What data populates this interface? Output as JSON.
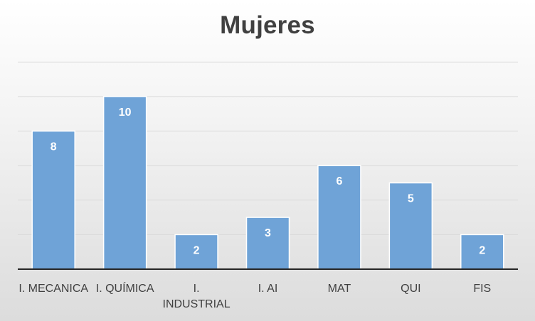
{
  "chart_data": {
    "type": "bar",
    "title": "Mujeres",
    "categories": [
      "I. MECANICA",
      "I. QUÍMICA",
      "I. INDUSTRIAL",
      "I. AI",
      "MAT",
      "QUI",
      "FIS"
    ],
    "category_lines": [
      [
        "I. MECANICA"
      ],
      [
        "I. QUÍMICA"
      ],
      [
        "I.",
        "INDUSTRIAL"
      ],
      [
        "I. AI"
      ],
      [
        "MAT"
      ],
      [
        "QUI"
      ],
      [
        "FIS"
      ]
    ],
    "values": [
      8,
      10,
      2,
      3,
      6,
      5,
      2
    ],
    "ylim": [
      0,
      12
    ],
    "grid": true,
    "legend": "none",
    "colors": {
      "bar": "#6fa3d7",
      "bar_label": "#ffffff",
      "title": "#404040",
      "gridline": "#d9d9d9"
    }
  }
}
